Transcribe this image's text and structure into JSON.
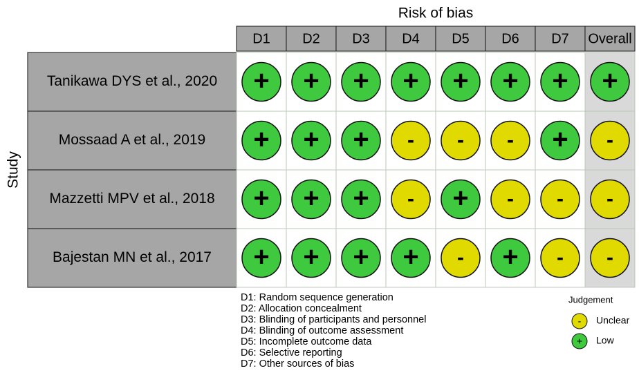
{
  "title": "Risk of bias",
  "y_label": "Study",
  "columns": [
    "D1",
    "D2",
    "D3",
    "D4",
    "D5",
    "D6",
    "D7",
    "Overall"
  ],
  "rows": [
    {
      "study": "Tanikawa DYS et al., 2020",
      "judgements": [
        "+",
        "+",
        "+",
        "+",
        "+",
        "+",
        "+",
        "+"
      ]
    },
    {
      "study": "Mossaad A et al., 2019",
      "judgements": [
        "+",
        "+",
        "+",
        "-",
        "-",
        "-",
        "+",
        "-"
      ]
    },
    {
      "study": "Mazzetti MPV et al., 2018",
      "judgements": [
        "+",
        "+",
        "+",
        "-",
        "+",
        "-",
        "-",
        "-"
      ]
    },
    {
      "study": "Bajestan MN et al., 2017",
      "judgements": [
        "+",
        "+",
        "+",
        "+",
        "-",
        "+",
        "-",
        "-"
      ]
    }
  ],
  "domain_notes": [
    "D1: Random sequence generation",
    "D2: Allocation concealment",
    "D3: Blinding of participants and personnel",
    "D4: Blinding of outcome assessment",
    "D5: Incomplete outcome data",
    "D6: Selective reporting",
    "D7: Other sources of bias"
  ],
  "legend": {
    "title": "Judgement",
    "items": [
      {
        "symbol": "-",
        "label": "Unclear",
        "color": "#e0da00"
      },
      {
        "symbol": "+",
        "label": "Low",
        "color": "#3ec93e"
      }
    ]
  }
}
